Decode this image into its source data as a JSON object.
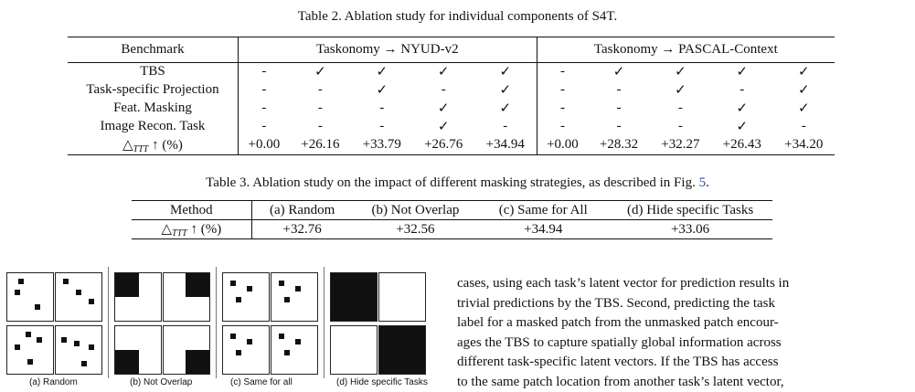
{
  "table2": {
    "caption": "Table 2. Ablation study for individual components of S4T.",
    "header": {
      "benchmark": "Benchmark",
      "group1": "Taskonomy → NYUD-v2",
      "group2": "Taskonomy → PASCAL-Context"
    },
    "rows": [
      {
        "label": "TBS",
        "cells": [
          "-",
          "✓",
          "✓",
          "✓",
          "✓",
          "-",
          "✓",
          "✓",
          "✓",
          "✓"
        ]
      },
      {
        "label": "Task-specific Projection",
        "cells": [
          "-",
          "-",
          "✓",
          "-",
          "✓",
          "-",
          "-",
          "✓",
          "-",
          "✓"
        ]
      },
      {
        "label": "Feat. Masking",
        "cells": [
          "-",
          "-",
          "-",
          "✓",
          "✓",
          "-",
          "-",
          "-",
          "✓",
          "✓"
        ]
      },
      {
        "label": "Image Recon. Task",
        "cells": [
          "-",
          "-",
          "-",
          "✓",
          "-",
          "-",
          "-",
          "-",
          "✓",
          "-"
        ]
      }
    ],
    "metric_row": {
      "label_prefix": "△",
      "label_sub": "TTT",
      "label_suffix": " ↑ (%)",
      "cells": [
        "+0.00",
        "+26.16",
        "+33.79",
        "+26.76",
        "+34.94",
        "+0.00",
        "+28.32",
        "+32.27",
        "+26.43",
        "+34.20"
      ]
    }
  },
  "table3": {
    "caption_text": "Table 3. Ablation study on the impact of different masking strategies, as described in Fig. ",
    "caption_ref": "5",
    "caption_end": ".",
    "header": [
      "Method",
      "(a) Random",
      "(b) Not Overlap",
      "(c) Same for All",
      "(d) Hide specific Tasks"
    ],
    "metric_row": {
      "label_prefix": "△",
      "label_sub": "TTT",
      "label_suffix": " ↑ (%)",
      "cells": [
        "+32.76",
        "+32.56",
        "+34.94",
        "+33.06"
      ]
    }
  },
  "figure5": {
    "labels": [
      "(a) Random",
      "(b) Not Overlap",
      "(c) Same for all",
      "(d) Hide specific Tasks"
    ]
  },
  "body_text": [
    "cases, using each task’s latent vector for prediction results in",
    "trivial predictions by the TBS. Second, predicting the task",
    "label for a masked patch from the unmasked patch encour-",
    "ages the TBS to capture spatially global information across",
    "different task-specific latent vectors. If the TBS has access",
    "to the same patch location from another task’s latent vector,"
  ]
}
